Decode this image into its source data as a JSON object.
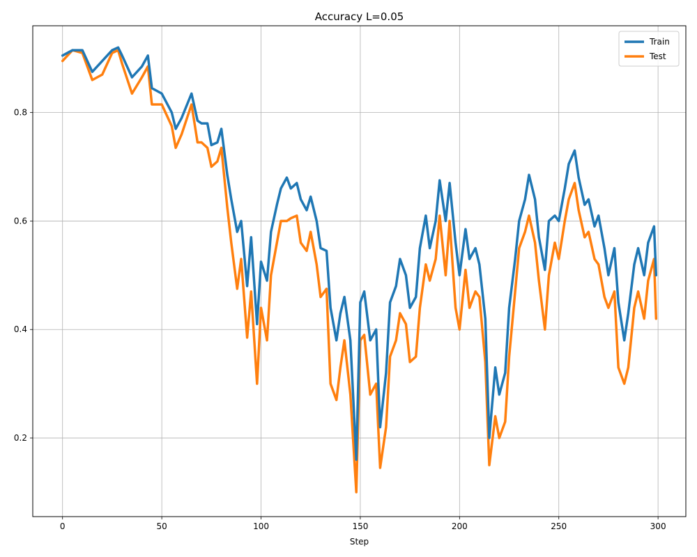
{
  "chart_data": {
    "type": "line",
    "title": "Accuracy L=0.05",
    "xlabel": "Step",
    "ylabel": "",
    "xlim": [
      -15,
      314
    ],
    "ylim": [
      0.055,
      0.96
    ],
    "xticks": [
      0,
      50,
      100,
      150,
      200,
      250,
      300
    ],
    "yticks": [
      0.2,
      0.4,
      0.6,
      0.8
    ],
    "ytick_labels": [
      "0.2",
      "0.4",
      "0.6",
      "0.8"
    ],
    "grid": true,
    "legend_position": "top-right",
    "colors": {
      "Train": "#1f77b4",
      "Test": "#ff7f0e"
    },
    "series": [
      {
        "name": "Train",
        "x": [
          0,
          5,
          10,
          15,
          20,
          25,
          28,
          30,
          35,
          40,
          43,
          45,
          50,
          55,
          57,
          60,
          65,
          68,
          70,
          73,
          75,
          78,
          80,
          83,
          85,
          88,
          90,
          93,
          95,
          98,
          100,
          103,
          105,
          108,
          110,
          113,
          115,
          118,
          120,
          123,
          125,
          128,
          130,
          133,
          135,
          138,
          140,
          142,
          145,
          148,
          150,
          152,
          155,
          158,
          160,
          163,
          165,
          168,
          170,
          173,
          175,
          178,
          180,
          183,
          185,
          188,
          190,
          193,
          195,
          198,
          200,
          203,
          205,
          208,
          210,
          213,
          215,
          218,
          220,
          223,
          225,
          228,
          230,
          233,
          235,
          238,
          240,
          243,
          245,
          248,
          250,
          253,
          255,
          258,
          260,
          263,
          265,
          268,
          270,
          273,
          275,
          278,
          280,
          283,
          285,
          288,
          290,
          293,
          295,
          298,
          299
        ],
        "values": [
          0.905,
          0.915,
          0.915,
          0.875,
          0.895,
          0.915,
          0.92,
          0.905,
          0.865,
          0.885,
          0.905,
          0.845,
          0.835,
          0.8,
          0.77,
          0.79,
          0.835,
          0.785,
          0.78,
          0.78,
          0.74,
          0.745,
          0.77,
          0.685,
          0.64,
          0.58,
          0.6,
          0.48,
          0.57,
          0.41,
          0.525,
          0.49,
          0.58,
          0.63,
          0.66,
          0.68,
          0.66,
          0.67,
          0.64,
          0.62,
          0.645,
          0.6,
          0.55,
          0.545,
          0.44,
          0.38,
          0.43,
          0.46,
          0.38,
          0.16,
          0.45,
          0.47,
          0.38,
          0.4,
          0.22,
          0.32,
          0.45,
          0.48,
          0.53,
          0.5,
          0.44,
          0.46,
          0.55,
          0.61,
          0.55,
          0.6,
          0.675,
          0.6,
          0.67,
          0.56,
          0.5,
          0.585,
          0.53,
          0.55,
          0.52,
          0.42,
          0.2,
          0.33,
          0.28,
          0.32,
          0.44,
          0.53,
          0.6,
          0.64,
          0.685,
          0.64,
          0.57,
          0.51,
          0.6,
          0.61,
          0.6,
          0.66,
          0.705,
          0.73,
          0.68,
          0.63,
          0.64,
          0.59,
          0.61,
          0.55,
          0.5,
          0.55,
          0.45,
          0.38,
          0.43,
          0.52,
          0.55,
          0.5,
          0.56,
          0.59,
          0.5
        ],
        "color": "#1f77b4"
      },
      {
        "name": "Test",
        "x": [
          0,
          5,
          10,
          15,
          20,
          25,
          28,
          30,
          35,
          40,
          43,
          45,
          50,
          55,
          57,
          60,
          65,
          68,
          70,
          73,
          75,
          78,
          80,
          83,
          85,
          88,
          90,
          93,
          95,
          98,
          100,
          103,
          105,
          108,
          110,
          113,
          115,
          118,
          120,
          123,
          125,
          128,
          130,
          133,
          135,
          138,
          140,
          142,
          145,
          148,
          150,
          152,
          155,
          158,
          160,
          163,
          165,
          168,
          170,
          173,
          175,
          178,
          180,
          183,
          185,
          188,
          190,
          193,
          195,
          198,
          200,
          203,
          205,
          208,
          210,
          213,
          215,
          218,
          220,
          223,
          225,
          228,
          230,
          233,
          235,
          238,
          240,
          243,
          245,
          248,
          250,
          253,
          255,
          258,
          260,
          263,
          265,
          268,
          270,
          273,
          275,
          278,
          280,
          283,
          285,
          288,
          290,
          293,
          295,
          298,
          299
        ],
        "values": [
          0.895,
          0.915,
          0.91,
          0.86,
          0.87,
          0.91,
          0.915,
          0.89,
          0.835,
          0.865,
          0.885,
          0.815,
          0.815,
          0.775,
          0.735,
          0.76,
          0.815,
          0.745,
          0.745,
          0.735,
          0.7,
          0.71,
          0.735,
          0.625,
          0.56,
          0.475,
          0.53,
          0.385,
          0.47,
          0.3,
          0.44,
          0.38,
          0.5,
          0.56,
          0.6,
          0.6,
          0.605,
          0.61,
          0.56,
          0.545,
          0.58,
          0.52,
          0.46,
          0.475,
          0.3,
          0.27,
          0.33,
          0.38,
          0.28,
          0.1,
          0.38,
          0.39,
          0.28,
          0.3,
          0.145,
          0.22,
          0.35,
          0.38,
          0.43,
          0.41,
          0.34,
          0.35,
          0.44,
          0.52,
          0.49,
          0.53,
          0.61,
          0.5,
          0.6,
          0.44,
          0.4,
          0.51,
          0.44,
          0.47,
          0.46,
          0.34,
          0.15,
          0.24,
          0.2,
          0.23,
          0.35,
          0.47,
          0.55,
          0.58,
          0.61,
          0.56,
          0.49,
          0.4,
          0.5,
          0.56,
          0.53,
          0.6,
          0.64,
          0.67,
          0.62,
          0.57,
          0.58,
          0.53,
          0.52,
          0.46,
          0.44,
          0.47,
          0.33,
          0.3,
          0.33,
          0.44,
          0.47,
          0.42,
          0.49,
          0.53,
          0.42
        ],
        "color": "#ff7f0e"
      }
    ]
  }
}
